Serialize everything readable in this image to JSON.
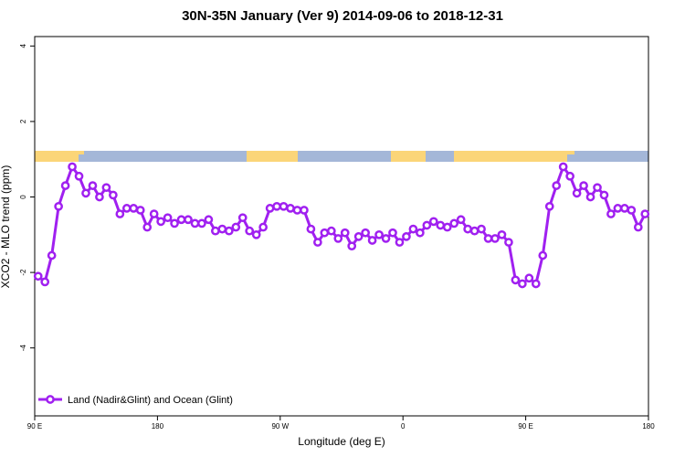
{
  "chart_data": {
    "type": "line",
    "title": "30N-35N January (Ver 9)   2014-09-06 to 2018-12-31",
    "x_label": "Longitude (deg E)",
    "y_label": "XCO2 - MLO trend (ppm)",
    "xlim": [
      90,
      540
    ],
    "xticks": [
      {
        "value": 90,
        "label": "90 E"
      },
      180,
      {
        "value": 270,
        "label": "90 W"
      },
      {
        "value": 360,
        "label": "0"
      },
      {
        "value": 450,
        "label": "90 E"
      },
      {
        "value": 540,
        "label": "180"
      }
    ],
    "ylim": [
      -5.8,
      4.25
    ],
    "yticks": [
      -4,
      -2,
      0,
      2,
      4
    ],
    "legend_position": "bottom-left",
    "series": [
      {
        "name": "Land (Nadir&Glint) and Ocean (Glint)",
        "color": "#a020f0",
        "x": [
          92.5,
          97.5,
          102.5,
          107.5,
          112.5,
          117.5,
          122.5,
          127.5,
          132.5,
          137.5,
          142.5,
          147.5,
          152.5,
          157.5,
          162.5,
          167.5,
          172.5,
          177.5,
          182.5,
          187.5,
          192.5,
          197.5,
          202.5,
          207.5,
          212.5,
          217.5,
          222.5,
          227.5,
          232.5,
          237.5,
          242.5,
          247.5,
          252.5,
          257.5,
          262.5,
          267.5,
          272.5,
          277.5,
          282.5,
          287.5,
          292.5,
          297.5,
          302.5,
          307.5,
          312.5,
          317.5,
          322.5,
          327.5,
          332.5,
          337.5,
          342.5,
          347.5,
          352.5,
          357.5,
          362.5,
          367.5,
          372.5,
          377.5,
          382.5,
          387.5,
          392.5,
          397.5,
          402.5,
          407.5,
          412.5,
          417.5,
          422.5,
          427.5,
          432.5,
          437.5,
          442.5,
          447.5,
          452.5,
          457.5,
          462.5,
          467.5,
          472.5,
          477.5,
          482.5,
          487.5,
          492.5,
          497.5,
          502.5,
          507.5,
          512.5,
          517.5,
          522.5,
          527.5,
          532.5,
          537.5
        ],
        "values": [
          -2.1,
          -2.25,
          -1.55,
          -0.25,
          0.3,
          0.8,
          0.55,
          0.1,
          0.3,
          0.0,
          0.25,
          0.05,
          -0.45,
          -0.3,
          -0.3,
          -0.35,
          -0.8,
          -0.45,
          -0.65,
          -0.55,
          -0.7,
          -0.6,
          -0.6,
          -0.7,
          -0.7,
          -0.6,
          -0.9,
          -0.85,
          -0.9,
          -0.8,
          -0.55,
          -0.9,
          -1.0,
          -0.8,
          -0.3,
          -0.25,
          -0.25,
          -0.3,
          -0.35,
          -0.35,
          -0.85,
          -1.2,
          -0.95,
          -0.9,
          -1.1,
          -0.95,
          -1.3,
          -1.05,
          -0.95,
          -1.15,
          -1.0,
          -1.1,
          -0.95,
          -1.2,
          -1.05,
          -0.85,
          -0.95,
          -0.75,
          -0.65,
          -0.75,
          -0.8,
          -0.7,
          -0.6,
          -0.85,
          -0.9,
          -0.85,
          -1.1,
          -1.1,
          -1.0,
          -1.2,
          -2.2,
          -2.3,
          -2.15,
          -2.3,
          -1.55,
          -0.25,
          0.3,
          0.8,
          0.55,
          0.1,
          0.3,
          0.0,
          0.25,
          0.05,
          -0.45,
          -0.3,
          -0.3,
          -0.35,
          -0.8,
          -0.45
        ]
      }
    ]
  }
}
